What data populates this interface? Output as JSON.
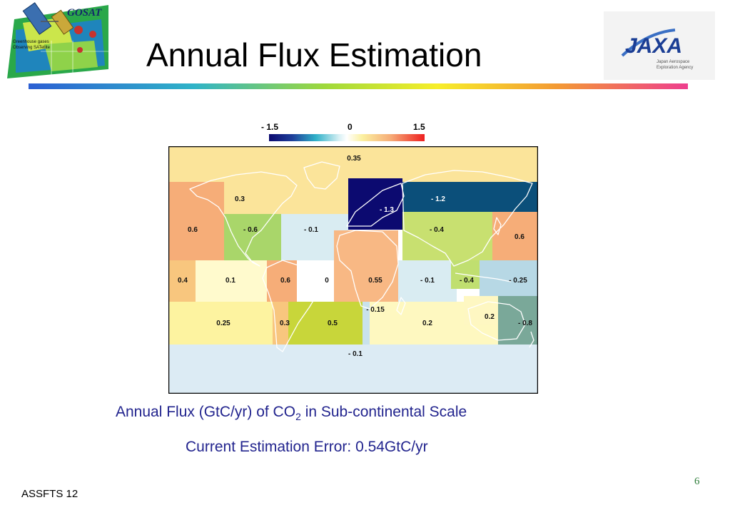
{
  "title": "Annual Flux Estimation",
  "gosat_logo": {
    "name": "GOSAT",
    "tagline_line1": "Greenhouse gases",
    "tagline_line2": "Observing SATellite"
  },
  "jaxa_logo": {
    "name": "JAXA",
    "sub_line1": "Japan Aerospace",
    "sub_line2": "Exploration Agency"
  },
  "legend": {
    "min_label": "- 1.5",
    "mid_label": "0",
    "max_label": "1.5"
  },
  "regions": [
    {
      "label": "0.35",
      "color": "#fbe49a"
    },
    {
      "label": "0.3",
      "color": "#fbe49a"
    },
    {
      "label": "- 1.3",
      "color": "#0c0a70"
    },
    {
      "label": "- 1.2",
      "color": "#0b4f7a"
    },
    {
      "label": "0.6",
      "color": "#f6ad78"
    },
    {
      "label": "- 0.6",
      "color": "#a9d66a"
    },
    {
      "label": "- 0.1",
      "color": "#d9ecf2"
    },
    {
      "label": "- 0.4",
      "color": "#c8e070"
    },
    {
      "label": "0.6",
      "color": "#f6ad78"
    },
    {
      "label": "0.4",
      "color": "#f8c67e"
    },
    {
      "label": "0.1",
      "color": "#fffacd"
    },
    {
      "label": "0.6",
      "color": "#f6ad78"
    },
    {
      "label": "0",
      "color": "#ffffff"
    },
    {
      "label": "0.55",
      "color": "#f8b884"
    },
    {
      "label": "- 0.1",
      "color": "#d9ecf2"
    },
    {
      "label": "- 0.4",
      "color": "#c0df70"
    },
    {
      "label": "- 0.25",
      "color": "#b7d8e5"
    },
    {
      "label": "0.25",
      "color": "#fdf3a0"
    },
    {
      "label": "0.3",
      "color": "#f8c67e"
    },
    {
      "label": "0.5",
      "color": "#c8d63a"
    },
    {
      "label": "- 0.15",
      "color": "#c9e2ec"
    },
    {
      "label": "0.2",
      "color": "#fef8c0"
    },
    {
      "label": "0.2",
      "color": "#fef7c2"
    },
    {
      "label": "- 0.8",
      "color": "#7aa899"
    },
    {
      "label": "- 0.1",
      "color": "#dcebf4"
    }
  ],
  "caption": {
    "line1_prefix": "Annual Flux (GtC/yr) of CO",
    "line1_subscript": "2",
    "line1_suffix": " in Sub-continental Scale",
    "line2": "Current Estimation Error: 0.54GtC/yr"
  },
  "footer": {
    "left": "ASSFTS 12",
    "page_number": "6"
  }
}
